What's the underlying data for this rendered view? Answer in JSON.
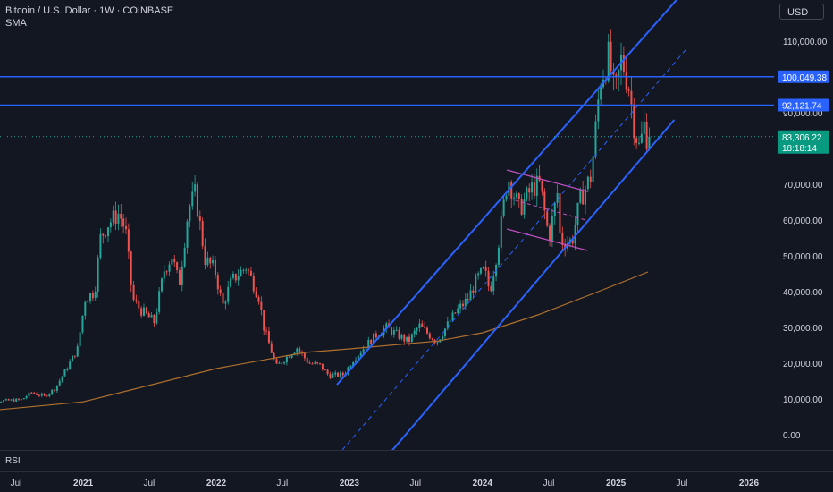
{
  "header": {
    "title": "Bitcoin / U.S. Dollar · 1W · COINBASE",
    "indicator": "SMA"
  },
  "currency": "USD",
  "rsi_label": "RSI",
  "colors": {
    "background": "#131722",
    "up": "#26a69a",
    "down": "#ef5350",
    "channel": "#2962ff",
    "horizontal_line": "#2962ff",
    "sma": "#b0702e",
    "flag": "#c050c0",
    "current_price_line": "#26a69a",
    "axis_text": "#d1d4dc",
    "separator": "#2a2e39"
  },
  "chart_data": {
    "type": "candlestick",
    "title": "Bitcoin / U.S. Dollar · 1W · COINBASE",
    "currency": "USD",
    "interval": "1W",
    "y_scale": "linear",
    "ylim": [
      -4000,
      118000
    ],
    "xlim": [
      "2020-03-15",
      "2026-05-15"
    ],
    "y_ticks": [
      {
        "value": 0,
        "label": "0.00"
      },
      {
        "value": 10000,
        "label": "10,000.00"
      },
      {
        "value": 20000,
        "label": "20,000.00"
      },
      {
        "value": 30000,
        "label": "30,000.00"
      },
      {
        "value": 40000,
        "label": "40,000.00"
      },
      {
        "value": 50000,
        "label": "50,000.00"
      },
      {
        "value": 60000,
        "label": "60,000.00"
      },
      {
        "value": 70000,
        "label": "70,000.00"
      },
      {
        "value": 90000,
        "label": "90,000.00"
      },
      {
        "value": 110000,
        "label": "110,000.00"
      }
    ],
    "x_ticks": [
      {
        "date": "2020-07-01",
        "label": "Jul",
        "bold": false
      },
      {
        "date": "2021-01-01",
        "label": "2021",
        "bold": true
      },
      {
        "date": "2021-07-01",
        "label": "Jul",
        "bold": false
      },
      {
        "date": "2022-01-01",
        "label": "2022",
        "bold": true
      },
      {
        "date": "2022-07-01",
        "label": "Jul",
        "bold": false
      },
      {
        "date": "2023-01-01",
        "label": "2023",
        "bold": true
      },
      {
        "date": "2023-07-01",
        "label": "Jul",
        "bold": false
      },
      {
        "date": "2024-01-01",
        "label": "2024",
        "bold": true
      },
      {
        "date": "2024-07-01",
        "label": "Jul",
        "bold": false
      },
      {
        "date": "2025-01-01",
        "label": "2025",
        "bold": true
      },
      {
        "date": "2025-07-01",
        "label": "Jul",
        "bold": false
      },
      {
        "date": "2026-01-01",
        "label": "2026",
        "bold": true
      }
    ],
    "price_path": [
      [
        "2020-03-15",
        9200
      ],
      [
        "2020-06-01",
        9500
      ],
      [
        "2020-07-20",
        9800
      ],
      [
        "2020-08-15",
        11800
      ],
      [
        "2020-09-20",
        10700
      ],
      [
        "2020-10-20",
        13000
      ],
      [
        "2020-11-20",
        18500
      ],
      [
        "2020-12-20",
        24000
      ],
      [
        "2021-01-10",
        38000
      ],
      [
        "2021-02-05",
        40000
      ],
      [
        "2021-02-21",
        55000
      ],
      [
        "2021-03-14",
        59000
      ],
      [
        "2021-04-13",
        62000
      ],
      [
        "2021-05-01",
        57000
      ],
      [
        "2021-05-20",
        38000
      ],
      [
        "2021-06-10",
        35000
      ],
      [
        "2021-07-18",
        31500
      ],
      [
        "2021-08-15",
        46000
      ],
      [
        "2021-09-05",
        50000
      ],
      [
        "2021-09-25",
        42000
      ],
      [
        "2021-10-20",
        63000
      ],
      [
        "2021-11-08",
        67500
      ],
      [
        "2021-12-05",
        49000
      ],
      [
        "2021-12-31",
        46300
      ],
      [
        "2022-01-22",
        36000
      ],
      [
        "2022-02-15",
        43000
      ],
      [
        "2022-03-28",
        47000
      ],
      [
        "2022-05-01",
        38500
      ],
      [
        "2022-05-15",
        30000
      ],
      [
        "2022-06-18",
        19000
      ],
      [
        "2022-07-25",
        22500
      ],
      [
        "2022-08-14",
        24300
      ],
      [
        "2022-09-15",
        20000
      ],
      [
        "2022-10-15",
        19500
      ],
      [
        "2022-11-10",
        16500
      ],
      [
        "2022-12-20",
        16800
      ],
      [
        "2023-01-15",
        21000
      ],
      [
        "2023-02-15",
        24500
      ],
      [
        "2023-03-20",
        28000
      ],
      [
        "2023-04-15",
        30000
      ],
      [
        "2023-06-15",
        26000
      ],
      [
        "2023-07-15",
        30500
      ],
      [
        "2023-09-01",
        26000
      ],
      [
        "2023-10-25",
        34500
      ],
      [
        "2023-11-25",
        37800
      ],
      [
        "2023-12-20",
        43500
      ],
      [
        "2024-01-10",
        46000
      ],
      [
        "2024-01-25",
        40000
      ],
      [
        "2024-02-15",
        52000
      ],
      [
        "2024-03-14",
        72000
      ],
      [
        "2024-04-15",
        63000
      ],
      [
        "2024-05-20",
        69000
      ],
      [
        "2024-06-10",
        70000
      ],
      [
        "2024-07-05",
        55000
      ],
      [
        "2024-07-29",
        68000
      ],
      [
        "2024-08-05",
        54000
      ],
      [
        "2024-09-06",
        54000
      ],
      [
        "2024-09-28",
        65500
      ],
      [
        "2024-10-29",
        72500
      ],
      [
        "2024-11-15",
        91000
      ],
      [
        "2024-11-22",
        99000
      ],
      [
        "2024-12-17",
        106000
      ],
      [
        "2025-01-01",
        94000
      ],
      [
        "2025-01-20",
        105000
      ],
      [
        "2025-02-10",
        97000
      ],
      [
        "2025-02-24",
        86000
      ],
      [
        "2025-03-10",
        80000
      ],
      [
        "2025-03-24",
        87000
      ],
      [
        "2025-03-30",
        83306
      ]
    ],
    "sma_path": [
      [
        "2020-03-15",
        6400
      ],
      [
        "2021-01-01",
        9200
      ],
      [
        "2022-01-01",
        18500
      ],
      [
        "2022-09-01",
        23000
      ],
      [
        "2023-01-01",
        24000
      ],
      [
        "2023-09-01",
        26200
      ],
      [
        "2024-01-01",
        28500
      ],
      [
        "2024-06-01",
        33500
      ],
      [
        "2024-11-01",
        39500
      ],
      [
        "2025-03-30",
        45500
      ]
    ],
    "channel": {
      "upper": [
        [
          "2022-11-28",
          14000
        ],
        [
          "2025-07-25",
          126000
        ]
      ],
      "middle": [
        [
          "2022-11-28",
          -6000
        ],
        [
          "2025-07-15",
          108000
        ]
      ],
      "lower": [
        [
          "2023-04-15",
          -6000
        ],
        [
          "2025-06-10",
          88000
        ]
      ]
    },
    "flag": {
      "upper": [
        [
          "2024-03-08",
          74000
        ],
        [
          "2024-10-15",
          68000
        ]
      ],
      "lower": [
        [
          "2024-03-08",
          57500
        ],
        [
          "2024-10-15",
          51500
        ]
      ],
      "middle": [
        [
          "2024-03-14",
          66000
        ],
        [
          "2024-10-10",
          60000
        ]
      ]
    },
    "horizontal_levels": [
      {
        "value": 100049.38,
        "label": "100,049.38"
      },
      {
        "value": 92121.74,
        "label": "92,121.74"
      }
    ],
    "current_price": {
      "value": 83306.22,
      "label": "83,306.22",
      "countdown": "18:18:14"
    },
    "lower_pane": "RSI"
  }
}
